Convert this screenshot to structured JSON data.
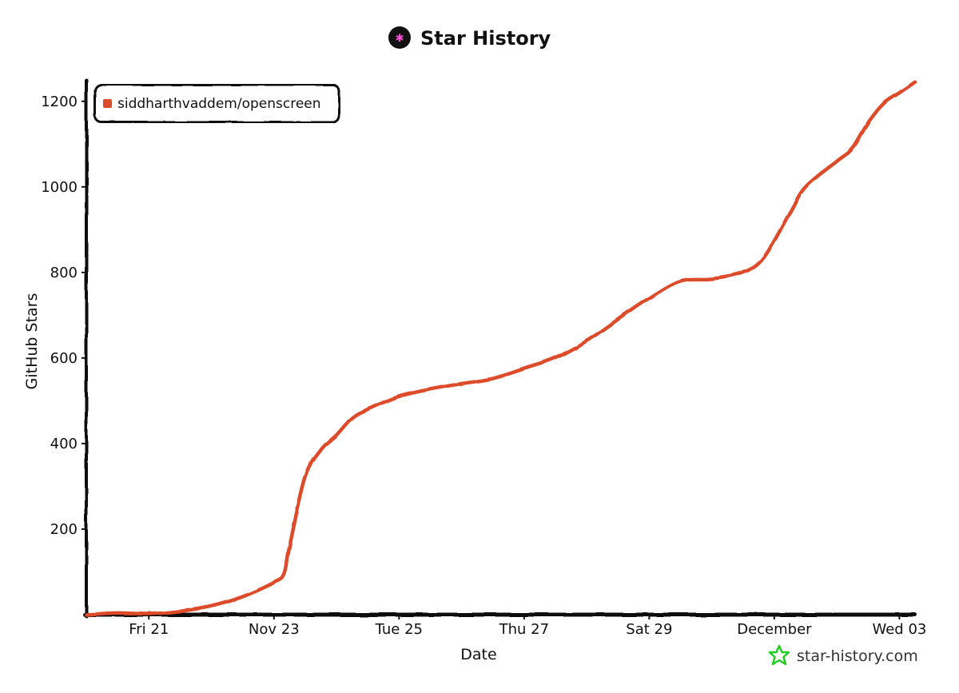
{
  "chart_data": {
    "type": "line",
    "title": "Star History",
    "xlabel": "Date",
    "ylabel": "GitHub Stars",
    "x_tick_labels": [
      "Fri 21",
      "Nov 23",
      "Tue 25",
      "Thu 27",
      "Sat 29",
      "December",
      "Wed 03"
    ],
    "y_ticks": [
      200,
      400,
      600,
      800,
      1000,
      1200
    ],
    "ylim": [
      0,
      1250
    ],
    "xlim": [
      "2025-11-20T00:00",
      "2025-12-03T06:00"
    ],
    "grid": false,
    "legend_position": "top-left",
    "series": [
      {
        "name": "siddharthvaddem/openscreen",
        "color": "#dd4b2a",
        "points": [
          [
            "2025-11-20T00:00",
            0
          ],
          [
            "2025-11-20T12:00",
            4
          ],
          [
            "2025-11-21T00:00",
            2
          ],
          [
            "2025-11-21T12:00",
            8
          ],
          [
            "2025-11-22T00:00",
            20
          ],
          [
            "2025-11-22T12:00",
            42
          ],
          [
            "2025-11-23T00:00",
            75
          ],
          [
            "2025-11-23T04:00",
            95
          ],
          [
            "2025-11-23T06:00",
            160
          ],
          [
            "2025-11-23T12:00",
            320
          ],
          [
            "2025-11-23T18:00",
            385
          ],
          [
            "2025-11-24T00:00",
            420
          ],
          [
            "2025-11-24T06:00",
            460
          ],
          [
            "2025-11-24T12:00",
            480
          ],
          [
            "2025-11-25T00:00",
            510
          ],
          [
            "2025-11-25T12:00",
            527
          ],
          [
            "2025-11-26T00:00",
            540
          ],
          [
            "2025-11-26T12:00",
            552
          ],
          [
            "2025-11-27T00:00",
            575
          ],
          [
            "2025-11-27T12:00",
            600
          ],
          [
            "2025-11-28T00:00",
            640
          ],
          [
            "2025-11-28T12:00",
            690
          ],
          [
            "2025-11-29T00:00",
            740
          ],
          [
            "2025-11-29T12:00",
            780
          ],
          [
            "2025-11-30T00:00",
            785
          ],
          [
            "2025-11-30T12:00",
            800
          ],
          [
            "2025-11-30T20:00",
            835
          ],
          [
            "2025-12-01T06:00",
            940
          ],
          [
            "2025-12-01T12:00",
            1000
          ],
          [
            "2025-12-02T00:00",
            1060
          ],
          [
            "2025-12-02T06:00",
            1090
          ],
          [
            "2025-12-02T12:00",
            1150
          ],
          [
            "2025-12-02T18:00",
            1195
          ],
          [
            "2025-12-03T00:00",
            1220
          ],
          [
            "2025-12-03T06:00",
            1245
          ]
        ]
      }
    ]
  },
  "brand": {
    "text": "star-history.com",
    "star_color": "#22cc22",
    "icon": "star-history-logo-icon"
  }
}
